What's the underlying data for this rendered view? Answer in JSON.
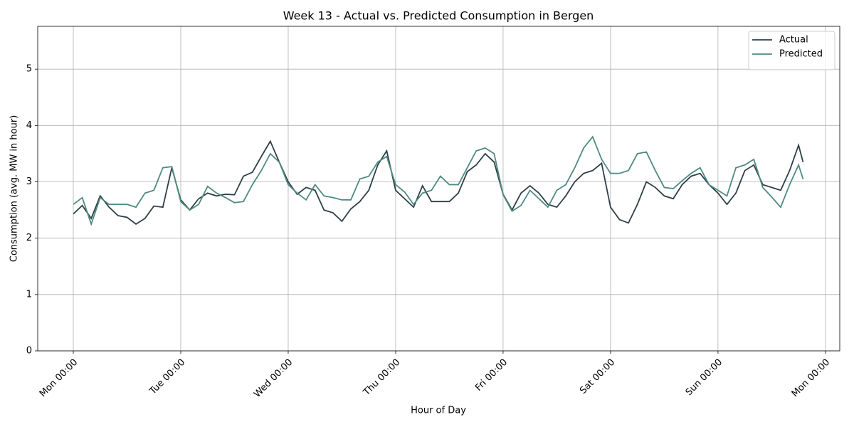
{
  "chart_data": {
    "type": "line",
    "title": "Week 13 - Actual vs. Predicted Consumption in Bergen",
    "x_label": "Hour of Day",
    "y_label": "Consumption (avg. MW in hour)",
    "x": [
      0,
      2,
      4,
      6,
      8,
      10,
      12,
      14,
      16,
      18,
      20,
      22,
      24,
      26,
      28,
      30,
      32,
      34,
      36,
      38,
      40,
      42,
      44,
      46,
      48,
      50,
      52,
      54,
      56,
      58,
      60,
      62,
      64,
      66,
      68,
      70,
      72,
      74,
      76,
      78,
      80,
      82,
      84,
      86,
      88,
      90,
      92,
      94,
      96,
      98,
      100,
      102,
      104,
      106,
      108,
      110,
      112,
      114,
      116,
      118,
      120,
      122,
      124,
      126,
      128,
      130,
      132,
      134,
      136,
      138,
      140,
      142,
      144,
      146,
      148,
      150,
      152,
      154,
      156,
      158,
      160,
      162,
      163
    ],
    "series": [
      {
        "name": "Actual",
        "color": "#2e3f47",
        "values": [
          2.43,
          2.58,
          2.35,
          2.75,
          2.55,
          2.4,
          2.37,
          2.25,
          2.35,
          2.57,
          2.55,
          3.25,
          2.68,
          2.5,
          2.7,
          2.8,
          2.75,
          2.78,
          2.77,
          3.1,
          3.17,
          3.45,
          3.72,
          3.35,
          3.0,
          2.78,
          2.9,
          2.85,
          2.5,
          2.45,
          2.3,
          2.52,
          2.65,
          2.85,
          3.3,
          3.55,
          2.85,
          2.7,
          2.55,
          2.93,
          2.65,
          2.65,
          2.65,
          2.8,
          3.18,
          3.3,
          3.5,
          3.35,
          2.78,
          2.5,
          2.8,
          2.93,
          2.8,
          2.6,
          2.55,
          2.75,
          3.0,
          3.15,
          3.2,
          3.33,
          2.55,
          2.33,
          2.27,
          2.6,
          3.0,
          2.9,
          2.75,
          2.7,
          2.95,
          3.1,
          3.15,
          2.95,
          2.8,
          2.6,
          2.8,
          3.2,
          3.3,
          2.95,
          2.9,
          2.85,
          3.2,
          3.65,
          3.35
        ]
      },
      {
        "name": "Predicted",
        "color": "#4f8a82",
        "values": [
          2.6,
          2.72,
          2.25,
          2.72,
          2.6,
          2.6,
          2.6,
          2.55,
          2.8,
          2.85,
          3.25,
          3.27,
          2.65,
          2.5,
          2.6,
          2.92,
          2.8,
          2.72,
          2.63,
          2.65,
          2.95,
          3.2,
          3.5,
          3.35,
          2.95,
          2.8,
          2.68,
          2.95,
          2.75,
          2.72,
          2.68,
          2.68,
          3.05,
          3.1,
          3.35,
          3.45,
          2.95,
          2.82,
          2.6,
          2.8,
          2.85,
          3.1,
          2.95,
          2.95,
          3.25,
          3.55,
          3.6,
          3.5,
          2.77,
          2.48,
          2.58,
          2.85,
          2.7,
          2.55,
          2.85,
          2.95,
          3.25,
          3.6,
          3.8,
          3.4,
          3.15,
          3.15,
          3.2,
          3.5,
          3.53,
          3.2,
          2.9,
          2.88,
          3.02,
          3.15,
          3.25,
          2.95,
          2.85,
          2.75,
          3.25,
          3.3,
          3.4,
          2.9,
          2.73,
          2.55,
          2.95,
          3.3,
          3.05
        ]
      }
    ],
    "xlim": [
      -7.95,
      171.2
    ],
    "xticks": [
      {
        "value": 0,
        "label": "Mon 00:00"
      },
      {
        "value": 24,
        "label": "Tue 00:00"
      },
      {
        "value": 48,
        "label": "Wed 00:00"
      },
      {
        "value": 72,
        "label": "Thu 00:00"
      },
      {
        "value": 96,
        "label": "Fri 00:00"
      },
      {
        "value": 120,
        "label": "Sat 00:00"
      },
      {
        "value": 144,
        "label": "Sun 00:00"
      },
      {
        "value": 168,
        "label": "Mon 00:00"
      }
    ],
    "ylim": [
      0,
      5.76
    ],
    "yticks": [
      0,
      1,
      2,
      3,
      4,
      5
    ],
    "grid": true,
    "legend": "upper-right"
  }
}
